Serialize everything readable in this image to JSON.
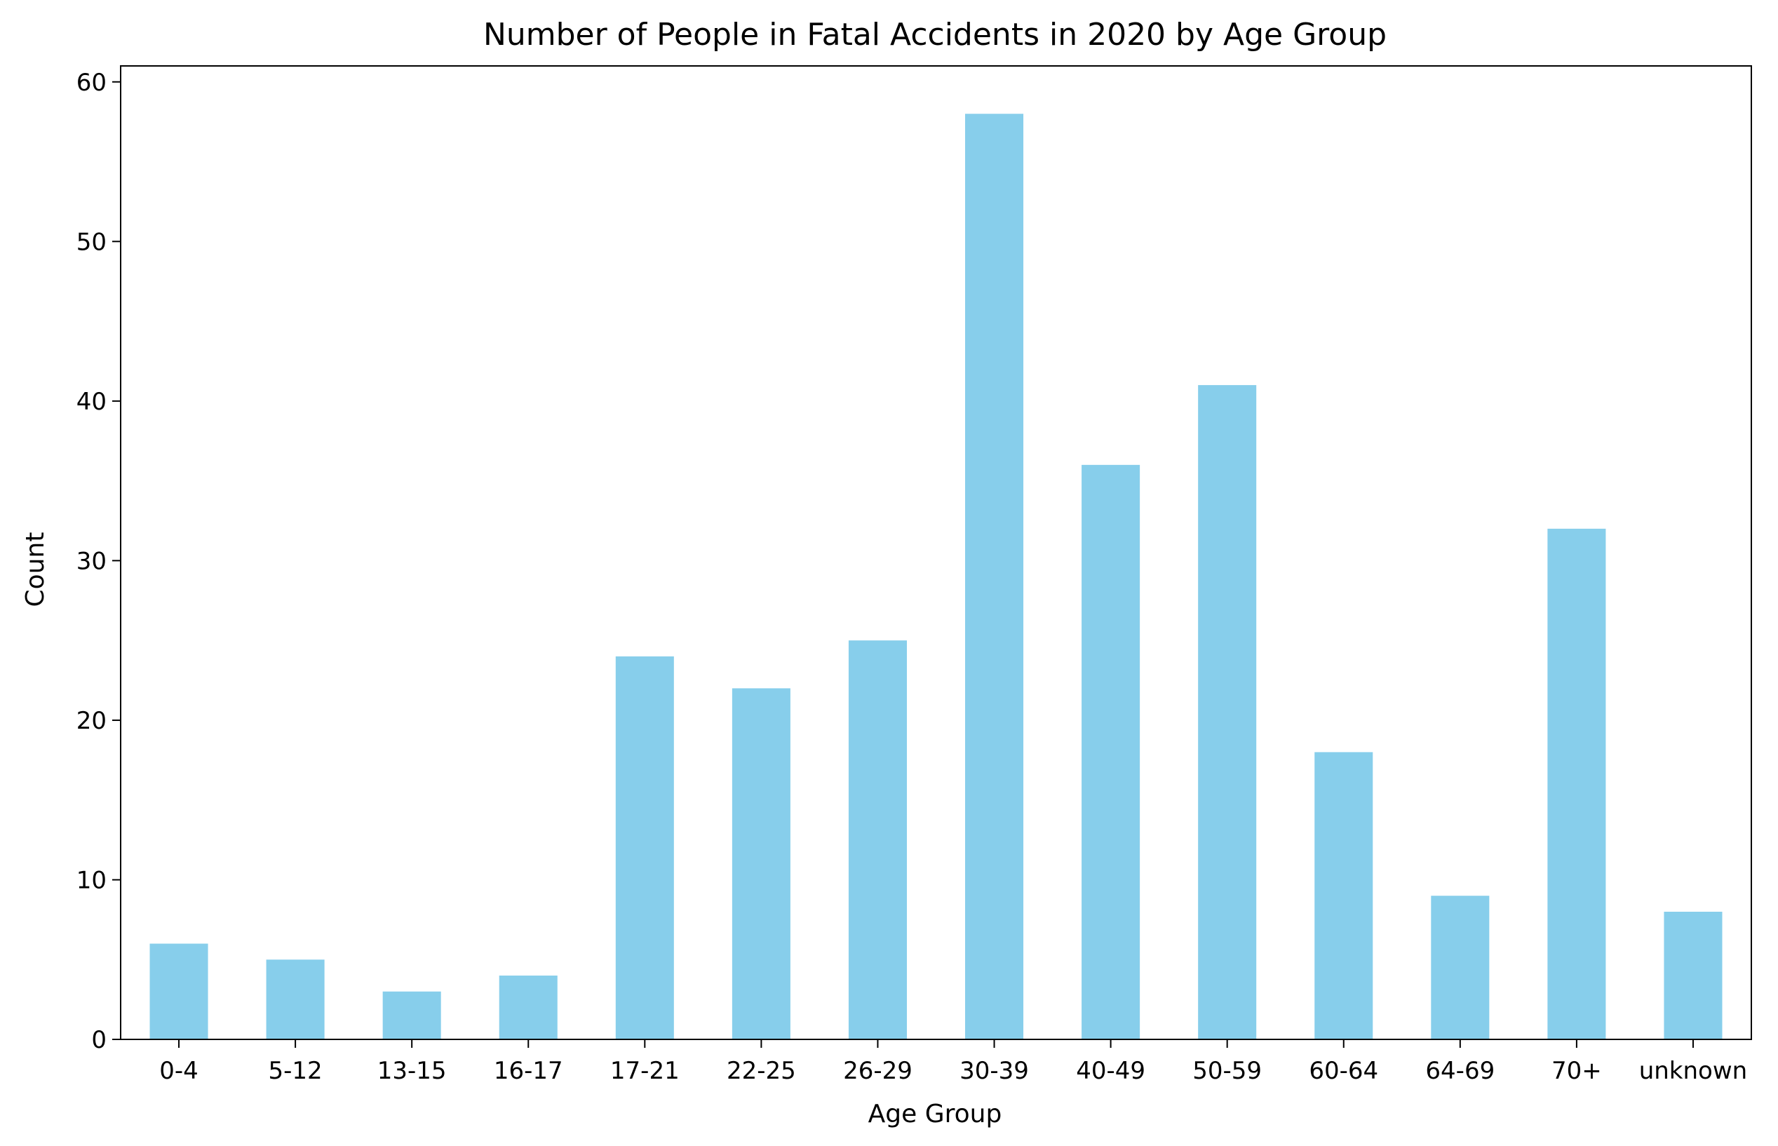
{
  "chart_data": {
    "type": "bar",
    "title": "Number of People in Fatal Accidents in 2020 by Age Group",
    "xlabel": "Age Group",
    "ylabel": "Count",
    "categories": [
      "0-4",
      "5-12",
      "13-15",
      "16-17",
      "17-21",
      "22-25",
      "26-29",
      "30-39",
      "40-49",
      "50-59",
      "60-64",
      "64-69",
      "70+",
      "unknown"
    ],
    "values": [
      6,
      5,
      3,
      4,
      24,
      22,
      25,
      58,
      36,
      41,
      18,
      9,
      32,
      8
    ],
    "ylim": [
      0,
      61
    ],
    "yticks": [
      0,
      10,
      20,
      30,
      40,
      50,
      60
    ],
    "bar_color": "#87CEEB",
    "grid": false,
    "legend": "none"
  }
}
